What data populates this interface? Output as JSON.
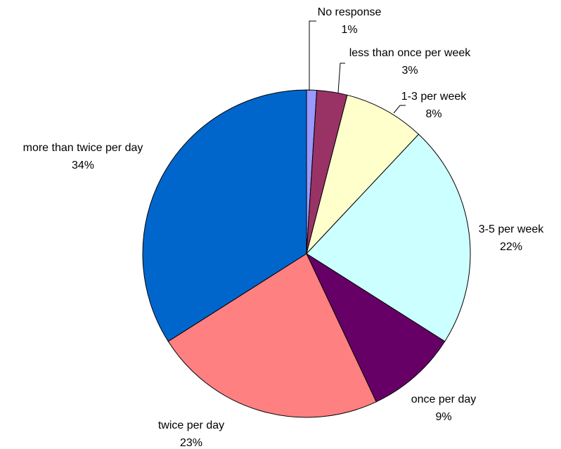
{
  "chart_data": {
    "type": "pie",
    "categories": [
      "No response",
      "less than once per week",
      "1-3 per week",
      "3-5 per week",
      "once per day",
      "twice per day",
      "more than twice per day"
    ],
    "values": [
      1,
      3,
      8,
      22,
      9,
      23,
      34
    ],
    "value_labels": [
      "1%",
      "3%",
      "8%",
      "22%",
      "9%",
      "23%",
      "34%"
    ],
    "colors": [
      "#9999ff",
      "#993366",
      "#ffffcc",
      "#ccffff",
      "#660066",
      "#ff8080",
      "#0066cc"
    ]
  }
}
